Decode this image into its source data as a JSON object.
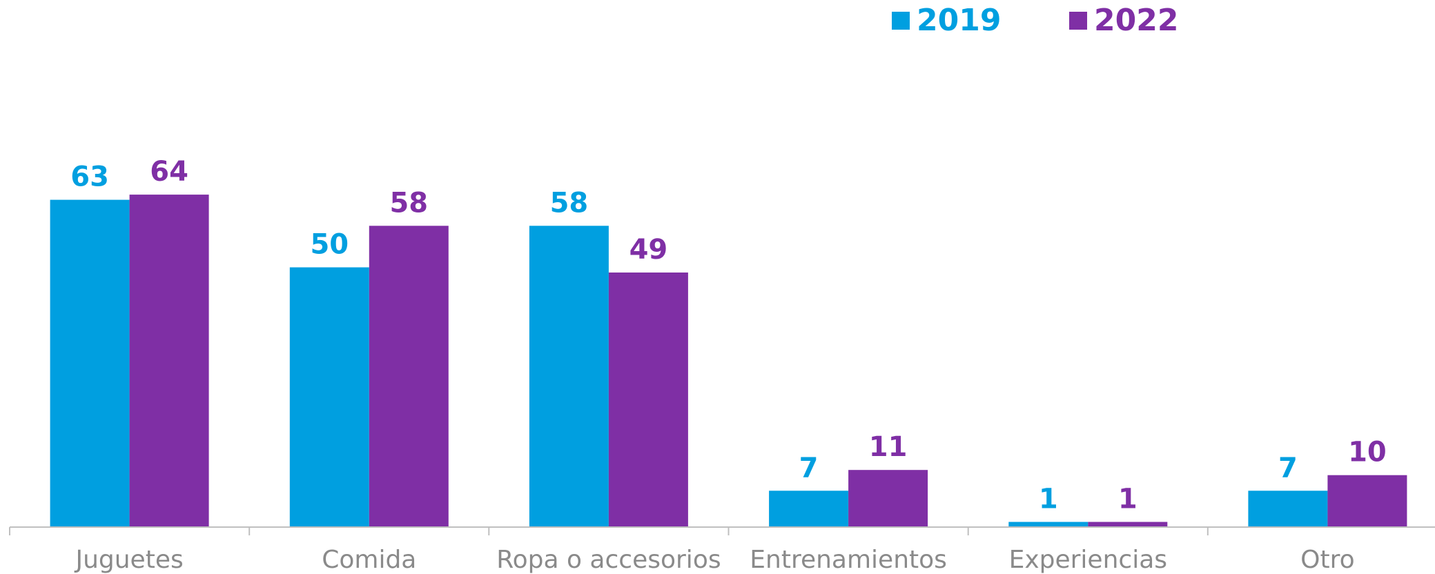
{
  "chart_data": {
    "type": "bar",
    "categories": [
      "Juguetes",
      "Comida",
      "Ropa o accesorios",
      "Entrenamientos",
      "Experiencias",
      "Otro"
    ],
    "series": [
      {
        "name": "2019",
        "values": [
          63,
          50,
          58,
          7,
          1,
          7
        ],
        "color": "#009fe0"
      },
      {
        "name": "2022",
        "values": [
          64,
          58,
          49,
          11,
          1,
          10
        ],
        "color": "#7f2fa5"
      }
    ],
    "ylim": [
      0,
      70
    ],
    "grid": false,
    "legend_position": "top-right",
    "data_labels": true
  }
}
